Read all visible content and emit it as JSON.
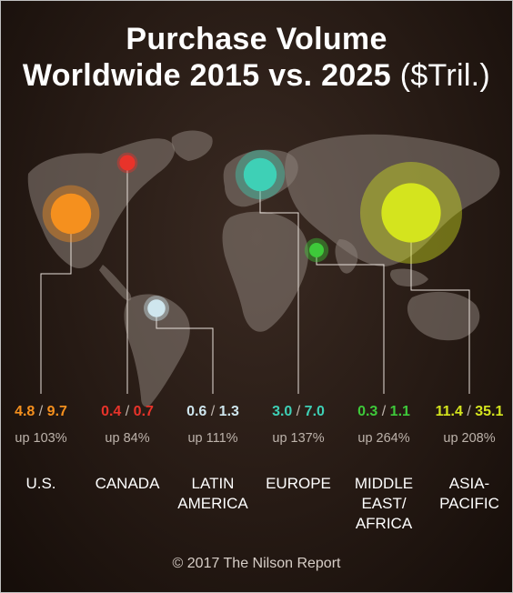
{
  "title": {
    "line1": "Purchase Volume",
    "line2_bold": "Worldwide 2015 vs. 2025",
    "line2_unit": "($Tril.)"
  },
  "credit": "© 2017 The Nilson Report",
  "chart_data": {
    "type": "bubble-map",
    "title": "Purchase Volume Worldwide 2015 vs. 2025 ($Tril.)",
    "series": [
      {
        "name": "2015"
      },
      {
        "name": "2025"
      }
    ],
    "regions": [
      {
        "id": "us",
        "name": "U.S.",
        "v2015": 4.8,
        "v2025": 9.7,
        "growth": "up 103%",
        "color": "#f5901e"
      },
      {
        "id": "canada",
        "name": "CANADA",
        "v2015": 0.4,
        "v2025": 0.7,
        "growth": "up 84%",
        "color": "#e8332a"
      },
      {
        "id": "latin-america",
        "name": "LATIN\nAMERICA",
        "v2015": 0.6,
        "v2025": 1.3,
        "growth": "up 111%",
        "color": "#cfe6ee"
      },
      {
        "id": "europe",
        "name": "EUROPE",
        "v2015": 3.0,
        "v2025": 7.0,
        "growth": "up 137%",
        "color": "#3ed0b6"
      },
      {
        "id": "middle-east-africa",
        "name": "MIDDLE\nEAST/\nAFRICA",
        "v2015": 0.3,
        "v2025": 1.1,
        "growth": "up 264%",
        "color": "#3ec93a"
      },
      {
        "id": "asia-pacific",
        "name": "ASIA-\nPACIFIC",
        "v2015": 11.4,
        "v2025": 35.1,
        "growth": "up 208%",
        "color": "#d4e41e"
      }
    ]
  }
}
